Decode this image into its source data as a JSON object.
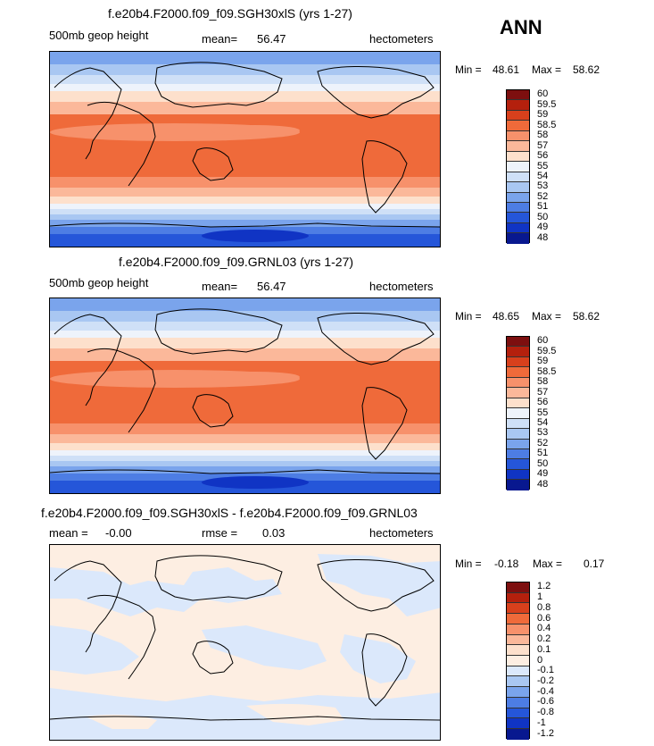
{
  "season": "ANN",
  "panels": [
    {
      "title": "f.e20b4.F2000.f09_f09.SGH30xlS (yrs 1-27)",
      "field": "500mb geop height",
      "mean_label": "mean=",
      "mean": "56.47",
      "units": "hectometers",
      "min_label": "Min =",
      "min": "48.61",
      "max_label": "Max =",
      "max": "58.62",
      "colorbar_labels": [
        "60",
        "59.5",
        "59",
        "58.5",
        "58",
        "57",
        "56",
        "55",
        "54",
        "53",
        "52",
        "51",
        "50",
        "49",
        "48"
      ],
      "colorbar_colors": [
        "#7d0f0f",
        "#b4200d",
        "#d8401c",
        "#ef6a3a",
        "#f7916b",
        "#fbb89a",
        "#fde0cc",
        "#eef3fb",
        "#cfe0f7",
        "#a9c7f2",
        "#7aa4ec",
        "#4d7de4",
        "#2556d9",
        "#1034c4",
        "#08188f"
      ]
    },
    {
      "title": "f.e20b4.F2000.f09_f09.GRNL03 (yrs 1-27)",
      "field": "500mb geop height",
      "mean_label": "mean=",
      "mean": "56.47",
      "units": "hectometers",
      "min_label": "Min =",
      "min": "48.65",
      "max_label": "Max =",
      "max": "58.62",
      "colorbar_labels": [
        "60",
        "59.5",
        "59",
        "58.5",
        "58",
        "57",
        "56",
        "55",
        "54",
        "53",
        "52",
        "51",
        "50",
        "49",
        "48"
      ],
      "colorbar_colors": [
        "#7d0f0f",
        "#b4200d",
        "#d8401c",
        "#ef6a3a",
        "#f7916b",
        "#fbb89a",
        "#fde0cc",
        "#eef3fb",
        "#cfe0f7",
        "#a9c7f2",
        "#7aa4ec",
        "#4d7de4",
        "#2556d9",
        "#1034c4",
        "#08188f"
      ]
    },
    {
      "title": "f.e20b4.F2000.f09_f09.SGH30xlS - f.e20b4.F2000.f09_f09.GRNL03",
      "mean_label": "mean =",
      "mean": "-0.00",
      "rmse_label": "rmse =",
      "rmse": "0.03",
      "units": "hectometers",
      "min_label": "Min =",
      "min": "-0.18",
      "max_label": "Max =",
      "max": "0.17",
      "colorbar_labels": [
        "1.2",
        "1",
        "0.8",
        "0.6",
        "0.4",
        "0.2",
        "0.1",
        "0",
        "-0.1",
        "-0.2",
        "-0.4",
        "-0.6",
        "-0.8",
        "-1",
        "-1.2"
      ],
      "colorbar_colors": [
        "#7d0f0f",
        "#b4200d",
        "#d8401c",
        "#ef6a3a",
        "#f7916b",
        "#fbb89a",
        "#fde0cc",
        "#fdeee2",
        "#dbe8fb",
        "#a9c7f2",
        "#7aa4ec",
        "#4d7de4",
        "#2556d9",
        "#1034c4",
        "#08188f"
      ]
    }
  ]
}
